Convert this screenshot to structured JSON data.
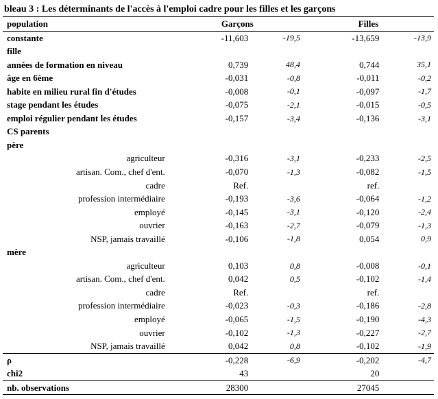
{
  "title": "bleau 3 : Les déterminants de l'accès à l'emploi  cadre pour les filles et les garçons",
  "headers": {
    "population": "population",
    "garcons": "Garçons",
    "filles": "Filles"
  },
  "rows": [
    {
      "label": "constante",
      "garcons_val": "-11,603",
      "garcons_t": "-19,5",
      "filles_val": "-13,659",
      "filles_t": "-13,9",
      "bold": true
    },
    {
      "label": "fille",
      "bold": true
    },
    {
      "label": "années de formation en niveau",
      "garcons_val": "0,739",
      "garcons_t": "48,4",
      "filles_val": "0,744",
      "filles_t": "35,1",
      "bold": true
    },
    {
      "label": "âge en 6ème",
      "garcons_val": "-0,031",
      "garcons_t": "-0,8",
      "filles_val": "-0,011",
      "filles_t": "-0,2",
      "bold": true
    },
    {
      "label": "habite en milieu rural fin d'études",
      "garcons_val": "-0,008",
      "garcons_t": "-0,1",
      "filles_val": "-0,097",
      "filles_t": "-1,7",
      "bold": true
    },
    {
      "label": "stage pendant les études",
      "garcons_val": "-0,075",
      "garcons_t": "-2,1",
      "filles_val": "-0,015",
      "filles_t": "-0,5",
      "bold": true
    },
    {
      "label": "emploi régulier pendant les études",
      "garcons_val": "-0,157",
      "garcons_t": "-3,4",
      "filles_val": "-0,136",
      "filles_t": "-3,1",
      "bold": true
    },
    {
      "label": "CS parents",
      "bold": true
    },
    {
      "label": "père",
      "bold": true
    }
  ],
  "pere": [
    {
      "label": "agriculteur",
      "garcons_val": "-0,316",
      "garcons_t": "-3,1",
      "filles_val": "-0,233",
      "filles_t": "-2,5"
    },
    {
      "label": "artisan. Com., chef d'ent.",
      "garcons_val": "-0,070",
      "garcons_t": "-1,3",
      "filles_val": "-0,082",
      "filles_t": "-1,5"
    },
    {
      "label": "cadre",
      "garcons_val": "Ref.",
      "filles_val": "ref."
    },
    {
      "label": "profession intermédiaire",
      "garcons_val": "-0,193",
      "garcons_t": "-3,6",
      "filles_val": "-0,064",
      "filles_t": "-1,2"
    },
    {
      "label": "employé",
      "garcons_val": "-0,145",
      "garcons_t": "-3,1",
      "filles_val": "-0,120",
      "filles_t": "-2,4"
    },
    {
      "label": "ouvrier",
      "garcons_val": "-0,163",
      "garcons_t": "-2,7",
      "filles_val": "-0,079",
      "filles_t": "-1,3"
    },
    {
      "label": "NSP,  jamais travaillé",
      "garcons_val": "-0,106",
      "garcons_t": "-1,8",
      "filles_val": "0,054",
      "filles_t": "0,9"
    }
  ],
  "mere_label": "mère",
  "mere": [
    {
      "label": "agriculteur",
      "garcons_val": "0,103",
      "garcons_t": "0,8",
      "filles_val": "-0,008",
      "filles_t": "-0,1"
    },
    {
      "label": "artisan. Com., chef d'ent.",
      "garcons_val": "0,042",
      "garcons_t": "0,5",
      "filles_val": "-0,102",
      "filles_t": "-1,4"
    },
    {
      "label": "cadre",
      "garcons_val": "Ref.",
      "filles_val": "ref."
    },
    {
      "label": "profession intermédiaire",
      "garcons_val": "-0,023",
      "garcons_t": "-0,3",
      "filles_val": "-0,186",
      "filles_t": "-2,8"
    },
    {
      "label": "employé",
      "garcons_val": "-0,065",
      "garcons_t": "-1,5",
      "filles_val": "-0,190",
      "filles_t": "-4,3"
    },
    {
      "label": "ouvrier",
      "garcons_val": "-0,102",
      "garcons_t": "-1,3",
      "filles_val": "-0,227",
      "filles_t": "-2,7"
    },
    {
      "label": "NSP, jamais travaillé",
      "garcons_val": "0,042",
      "garcons_t": "0,8",
      "filles_val": "-0,102",
      "filles_t": "-1,9"
    }
  ],
  "footer": {
    "rho_label": "ρ",
    "rho_garcons_val": "-0,228",
    "rho_garcons_t": "-6,9",
    "rho_filles_val": "-0,202",
    "rho_filles_t": "-4,7",
    "chi2_label": "chi2",
    "chi2_garcons": "43",
    "chi2_filles": "20",
    "obs_label": "nb. observations",
    "obs_garcons": "28300",
    "obs_filles": "27045"
  }
}
